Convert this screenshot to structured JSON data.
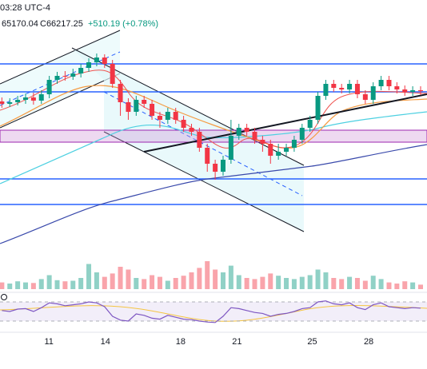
{
  "header": {
    "time": "03:28 UTC-4",
    "open_partial": "65170.04",
    "close": "C66217.25",
    "change": "+510.19 (+0.78%)"
  },
  "chart_data": {
    "type": "candlestick",
    "x": [
      8.5,
      8.92,
      9.34,
      9.76,
      10.18,
      10.6,
      11.02,
      11.44,
      11.86,
      12.28,
      12.7,
      13.12,
      13.54,
      13.96,
      14.38,
      14.8,
      15.22,
      15.64,
      16.06,
      16.48,
      16.9,
      17.32,
      17.74,
      18.16,
      18.58,
      19.0,
      19.42,
      19.84,
      20.26,
      20.68,
      21.1,
      21.52,
      21.94,
      22.36,
      22.78,
      23.2,
      23.62,
      24.04,
      24.46,
      24.88,
      25.3,
      25.72,
      26.14,
      26.56,
      26.98,
      27.4,
      27.82,
      28.24,
      28.66,
      29.08,
      29.5,
      29.92,
      30.34,
      30.76
    ],
    "open": [
      65960,
      65900,
      65940,
      66000,
      66060,
      65980,
      66140,
      66500,
      66600,
      66580,
      66660,
      66800,
      66940,
      67060,
      66900,
      66400,
      65940,
      65700,
      66000,
      65900,
      65600,
      65500,
      65700,
      65500,
      65300,
      65200,
      64800,
      64400,
      64200,
      64500,
      65100,
      65300,
      65200,
      65000,
      64900,
      64600,
      64700,
      64800,
      65000,
      65300,
      65500,
      66100,
      66400,
      66300,
      66260,
      66400,
      66140,
      66000,
      66340,
      66500,
      66340,
      66260,
      66200,
      66240
    ],
    "high": [
      66060,
      66040,
      66100,
      66160,
      66180,
      66240,
      66600,
      66700,
      66720,
      66780,
      66900,
      67040,
      67160,
      67140,
      67000,
      66500,
      66040,
      66100,
      66100,
      66000,
      65700,
      65800,
      65800,
      65600,
      65400,
      65300,
      64900,
      64500,
      64600,
      65500,
      65400,
      65400,
      65300,
      65100,
      65000,
      64900,
      64900,
      65100,
      65400,
      65600,
      66200,
      66500,
      66500,
      66400,
      66500,
      66500,
      66240,
      66440,
      66600,
      66600,
      66440,
      66360,
      66340,
      66340
    ],
    "low": [
      65800,
      65820,
      65860,
      65900,
      65880,
      65900,
      66040,
      66400,
      66480,
      66500,
      66560,
      66700,
      66840,
      66800,
      66300,
      65600,
      65500,
      65600,
      65800,
      65500,
      65300,
      65400,
      65400,
      65200,
      65100,
      64700,
      64200,
      64000,
      64100,
      64400,
      65000,
      65100,
      64900,
      64700,
      64400,
      64500,
      64600,
      64700,
      64900,
      65200,
      65400,
      66000,
      66200,
      66160,
      66160,
      66040,
      65900,
      65900,
      66240,
      66240,
      66160,
      66100,
      66100,
      66120
    ],
    "close": [
      65900,
      65940,
      66000,
      66060,
      65980,
      66140,
      66500,
      66600,
      66580,
      66660,
      66800,
      66940,
      67060,
      66900,
      66400,
      65940,
      65700,
      66000,
      65900,
      65600,
      65500,
      65700,
      65500,
      65300,
      65200,
      64800,
      64400,
      64200,
      64500,
      65100,
      65300,
      65200,
      65000,
      64900,
      64600,
      64700,
      64800,
      65000,
      65300,
      65500,
      66100,
      66400,
      66300,
      66260,
      66400,
      66140,
      66000,
      66340,
      66500,
      66340,
      66260,
      66200,
      66240,
      66217.25
    ],
    "xlim": [
      8.4,
      31.1
    ],
    "xticks": [
      11,
      14,
      18,
      21,
      25,
      28
    ],
    "ylim": [
      62300,
      68500
    ],
    "up_color": "#089981",
    "down_color": "#f23645",
    "volume": {
      "values": [
        12,
        10,
        14,
        12,
        11,
        18,
        25,
        16,
        14,
        15,
        20,
        45,
        30,
        22,
        28,
        40,
        35,
        20,
        18,
        25,
        22,
        15,
        20,
        24,
        30,
        38,
        50,
        35,
        30,
        42,
        25,
        20,
        18,
        22,
        28,
        24,
        20,
        18,
        22,
        25,
        35,
        30,
        20,
        18,
        22,
        20,
        15,
        24,
        18,
        12,
        10,
        14,
        12,
        8
      ],
      "ylim": [
        0,
        100
      ]
    },
    "rsi": {
      "values": [
        52,
        50,
        55,
        56,
        50,
        58,
        68,
        66,
        62,
        64,
        66,
        70,
        68,
        60,
        40,
        32,
        30,
        45,
        42,
        36,
        34,
        42,
        38,
        34,
        33,
        30,
        28,
        27,
        40,
        58,
        56,
        52,
        48,
        46,
        40,
        44,
        46,
        50,
        56,
        58,
        70,
        72,
        66,
        64,
        68,
        58,
        54,
        64,
        68,
        60,
        58,
        56,
        58,
        57
      ],
      "ylim": [
        0,
        100
      ],
      "band": [
        30,
        70
      ],
      "color": "#7e57c2"
    }
  }
}
